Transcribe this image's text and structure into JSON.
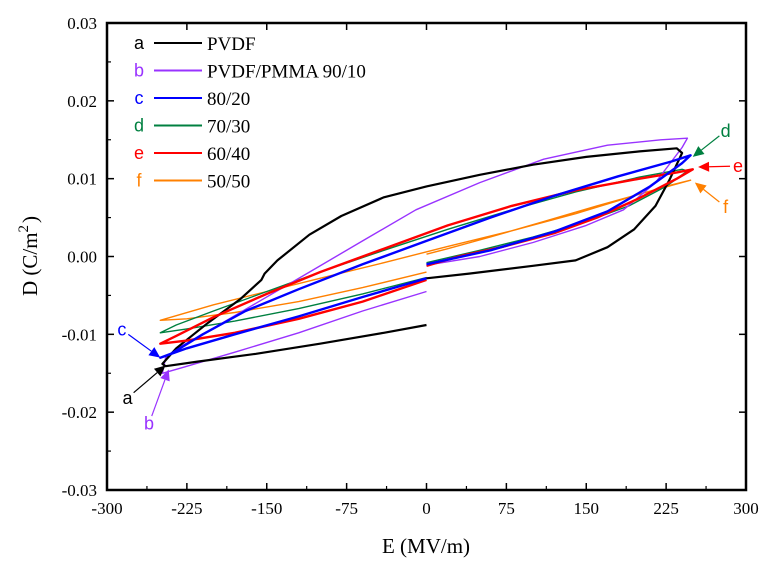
{
  "chart_data": {
    "type": "line",
    "title": "",
    "xlabel": "E (MV/m)",
    "ylabel_main": "D (C/m",
    "ylabel_sup": "2",
    "ylabel_close": ")",
    "xlim": [
      -300,
      300
    ],
    "ylim": [
      -0.03,
      0.03
    ],
    "grid": false,
    "legend_position": "top-left",
    "x_ticks": [
      -300,
      -225,
      -150,
      -75,
      0,
      75,
      150,
      225,
      300
    ],
    "x_tick_labels": [
      "-300",
      "-225",
      "-150",
      "-75",
      "0",
      "75",
      "150",
      "225",
      "300"
    ],
    "y_ticks": [
      0.03,
      0.02,
      0.01,
      0.0,
      -0.01,
      -0.02,
      -0.03
    ],
    "y_tick_labels": [
      "0.03",
      "0.02",
      "0.01",
      "0.00",
      "-0.01",
      "-0.02",
      "-0.03"
    ],
    "series": [
      {
        "letter": "a",
        "name": "PVDF",
        "color": "#000000",
        "points": [
          [
            0,
            -0.0088
          ],
          [
            -40,
            -0.0098
          ],
          [
            -100,
            -0.0112
          ],
          [
            -160,
            -0.0125
          ],
          [
            -215,
            -0.0135
          ],
          [
            -245,
            -0.0141
          ],
          [
            -248,
            -0.0138
          ],
          [
            -235,
            -0.0118
          ],
          [
            -205,
            -0.0085
          ],
          [
            -175,
            -0.0055
          ],
          [
            -155,
            -0.003
          ],
          [
            -152,
            -0.0022
          ],
          [
            -140,
            -0.0005
          ],
          [
            -110,
            0.0028
          ],
          [
            -80,
            0.0052
          ],
          [
            -40,
            0.0076
          ],
          [
            0,
            0.009
          ],
          [
            50,
            0.0105
          ],
          [
            100,
            0.0118
          ],
          [
            150,
            0.0128
          ],
          [
            200,
            0.0135
          ],
          [
            235,
            0.0139
          ],
          [
            240,
            0.0133
          ],
          [
            228,
            0.0098
          ],
          [
            215,
            0.0065
          ],
          [
            195,
            0.0035
          ],
          [
            170,
            0.0012
          ],
          [
            140,
            -0.0005
          ],
          [
            100,
            -0.0012
          ],
          [
            40,
            -0.0022
          ],
          [
            0,
            -0.0028
          ],
          [
            -5,
            -0.003
          ]
        ]
      },
      {
        "letter": "b",
        "name": "PVDF/PMMA 90/10",
        "color": "#9933FF",
        "points": [
          [
            0,
            -0.0045
          ],
          [
            -60,
            -0.007
          ],
          [
            -120,
            -0.0098
          ],
          [
            -180,
            -0.0123
          ],
          [
            -230,
            -0.0143
          ],
          [
            -248,
            -0.015
          ],
          [
            -245,
            -0.013
          ],
          [
            -230,
            -0.0115
          ],
          [
            -200,
            -0.0092
          ],
          [
            -160,
            -0.006
          ],
          [
            -110,
            -0.002
          ],
          [
            -60,
            0.002
          ],
          [
            -10,
            0.006
          ],
          [
            50,
            0.0095
          ],
          [
            110,
            0.0125
          ],
          [
            170,
            0.0143
          ],
          [
            220,
            0.015
          ],
          [
            245,
            0.0152
          ],
          [
            240,
            0.014
          ],
          [
            215,
            0.0095
          ],
          [
            185,
            0.006
          ],
          [
            150,
            0.004
          ],
          [
            100,
            0.0018
          ],
          [
            50,
            0.0
          ],
          [
            5,
            -0.001
          ]
        ]
      },
      {
        "letter": "c",
        "name": "80/20",
        "color": "#0000FF",
        "points": [
          [
            0,
            -0.0028
          ],
          [
            -60,
            -0.0052
          ],
          [
            -120,
            -0.0077
          ],
          [
            -180,
            -0.01
          ],
          [
            -225,
            -0.0118
          ],
          [
            -250,
            -0.013
          ],
          [
            -240,
            -0.0125
          ],
          [
            -210,
            -0.01
          ],
          [
            -170,
            -0.007
          ],
          [
            -120,
            -0.0042
          ],
          [
            -60,
            -0.001
          ],
          [
            0,
            0.002
          ],
          [
            60,
            0.005
          ],
          [
            120,
            0.0078
          ],
          [
            180,
            0.0103
          ],
          [
            230,
            0.0122
          ],
          [
            248,
            0.013
          ],
          [
            240,
            0.012
          ],
          [
            210,
            0.009
          ],
          [
            170,
            0.0058
          ],
          [
            120,
            0.0032
          ],
          [
            60,
            0.0008
          ],
          [
            0,
            -0.001
          ]
        ]
      },
      {
        "letter": "d",
        "name": "70/30",
        "color": "#008040",
        "points": [
          [
            0,
            -0.0027
          ],
          [
            -60,
            -0.0048
          ],
          [
            -120,
            -0.0067
          ],
          [
            -180,
            -0.0083
          ],
          [
            -225,
            -0.0093
          ],
          [
            -250,
            -0.0098
          ],
          [
            -235,
            -0.0088
          ],
          [
            -200,
            -0.007
          ],
          [
            -150,
            -0.0045
          ],
          [
            -100,
            -0.002
          ],
          [
            -40,
            0.0008
          ],
          [
            20,
            0.0035
          ],
          [
            80,
            0.006
          ],
          [
            140,
            0.0083
          ],
          [
            200,
            0.0102
          ],
          [
            240,
            0.0112
          ],
          [
            245,
            0.011
          ],
          [
            225,
            0.009
          ],
          [
            190,
            0.0065
          ],
          [
            150,
            0.0045
          ],
          [
            100,
            0.0025
          ],
          [
            50,
            0.0008
          ],
          [
            0,
            -0.0008
          ]
        ]
      },
      {
        "letter": "e",
        "name": "60/40",
        "color": "#FF0000",
        "points": [
          [
            0,
            -0.003
          ],
          [
            -60,
            -0.0058
          ],
          [
            -120,
            -0.008
          ],
          [
            -180,
            -0.0098
          ],
          [
            -225,
            -0.0108
          ],
          [
            -250,
            -0.0112
          ],
          [
            -235,
            -0.0102
          ],
          [
            -200,
            -0.0078
          ],
          [
            -150,
            -0.0048
          ],
          [
            -100,
            -0.002
          ],
          [
            -40,
            0.001
          ],
          [
            20,
            0.004
          ],
          [
            80,
            0.0065
          ],
          [
            140,
            0.0085
          ],
          [
            200,
            0.01
          ],
          [
            235,
            0.0108
          ],
          [
            250,
            0.0112
          ],
          [
            235,
            0.01
          ],
          [
            200,
            0.0075
          ],
          [
            160,
            0.005
          ],
          [
            120,
            0.003
          ],
          [
            70,
            0.0012
          ],
          [
            30,
            0.0
          ],
          [
            0,
            -0.0012
          ]
        ]
      },
      {
        "letter": "f",
        "name": "50/50",
        "color": "#FF8000",
        "points": [
          [
            0,
            -0.002
          ],
          [
            -60,
            -0.004
          ],
          [
            -120,
            -0.0058
          ],
          [
            -180,
            -0.0072
          ],
          [
            -225,
            -0.008
          ],
          [
            -250,
            -0.0082
          ],
          [
            -235,
            -0.0076
          ],
          [
            -200,
            -0.0062
          ],
          [
            -150,
            -0.0045
          ],
          [
            -100,
            -0.0028
          ],
          [
            -40,
            -0.0008
          ],
          [
            20,
            0.0013
          ],
          [
            80,
            0.0033
          ],
          [
            140,
            0.0055
          ],
          [
            200,
            0.008
          ],
          [
            248,
            0.0098
          ],
          [
            230,
            0.0092
          ],
          [
            200,
            0.008
          ],
          [
            160,
            0.0065
          ],
          [
            110,
            0.0045
          ],
          [
            60,
            0.0025
          ],
          [
            20,
            0.001
          ],
          [
            0,
            0.0003
          ]
        ]
      }
    ],
    "annotations": [
      {
        "letter": "a",
        "color": "#000000",
        "target": [
          -245,
          -0.014
        ],
        "from": [
          -275,
          -0.0175
        ]
      },
      {
        "letter": "b",
        "color": "#9933FF",
        "target": [
          -242,
          -0.0145
        ],
        "from": [
          -258,
          -0.0205
        ]
      },
      {
        "letter": "c",
        "color": "#0000FF",
        "target": [
          -250,
          -0.013
        ],
        "from": [
          -280,
          -0.01
        ]
      },
      {
        "letter": "d",
        "color": "#008040",
        "target": [
          250,
          0.0128
        ],
        "from": [
          275,
          0.0155
        ]
      },
      {
        "letter": "e",
        "color": "#FF0000",
        "target": [
          255,
          0.0115
        ],
        "from": [
          285,
          0.0116
        ]
      },
      {
        "letter": "f",
        "color": "#FF8000",
        "target": [
          252,
          0.0095
        ],
        "from": [
          275,
          0.007
        ]
      }
    ]
  }
}
